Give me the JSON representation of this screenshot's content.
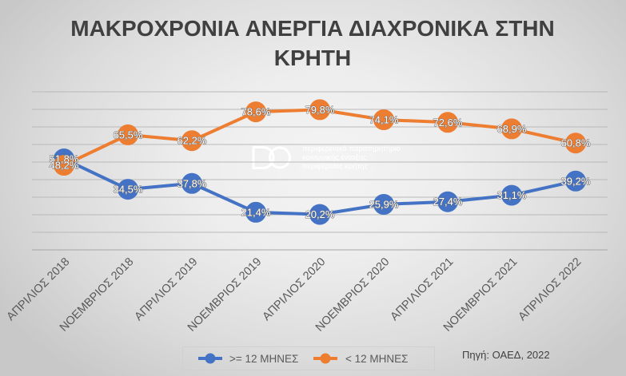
{
  "chart_data": {
    "type": "line",
    "title": "ΜΑΚΡΟΧΡΟΝΙΑ ΑΝΕΡΓΙΑ ΔΙΑΧΡΟΝΙΚΑ ΣΤΗΝ ΚΡΗΤΗ",
    "categories": [
      "ΑΠΡΙΛΙΟΣ 2018",
      "ΝΟΕΜΒΡΙΟΣ 2018",
      "ΑΠΡΙΛΙΟΣ 2019",
      "ΝΟΕΜΒΡΙΟΣ 2019",
      "ΑΠΡΙΛΙΟΣ 2020",
      "ΝΟΕΜΒΡΙΟΣ 2020",
      "ΑΠΡΙΛΙΟΣ 2021",
      "ΝΟΕΜΒΡΙΟΣ 2021",
      "ΑΠΡΙΛΙΟΣ 2022"
    ],
    "series": [
      {
        "name": ">= 12 ΜΗΝΕΣ",
        "color": "#4472C4",
        "values": [
          51.8,
          34.5,
          37.8,
          21.4,
          20.2,
          25.9,
          27.4,
          31.1,
          39.2
        ],
        "labels": [
          "51,8%",
          "34,5%",
          "37,8%",
          "21,4%",
          "20,2%",
          "25,9%",
          "27,4%",
          "31,1%",
          "39,2%"
        ]
      },
      {
        "name": "< 12 ΜΗΝΕΣ",
        "color": "#ED7D31",
        "values": [
          48.2,
          65.5,
          62.2,
          78.6,
          79.8,
          74.1,
          72.6,
          68.9,
          60.8
        ],
        "labels": [
          "48,2%",
          "65,5%",
          "62,2%",
          "78,6%",
          "79,8%",
          "74,1%",
          "72,6%",
          "68,9%",
          "60,8%"
        ]
      }
    ],
    "xlabel": "",
    "ylabel": "",
    "ylim": [
      0,
      90
    ],
    "grid": true,
    "legend": "bottom"
  },
  "source": "Πηγή: ΟΑΕΔ, 2022",
  "watermark": {
    "lines": [
      "περιφερειακό παρατηρητήριο",
      "κοινωνικής ένταξης",
      "περιφέρειας κρήτης"
    ]
  }
}
